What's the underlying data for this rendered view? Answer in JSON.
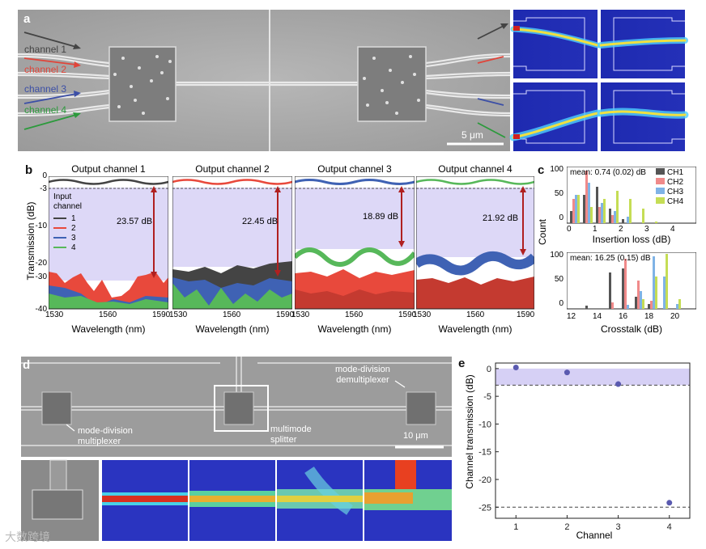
{
  "panel_a": {
    "label": "a",
    "channels": [
      {
        "name": "channel 1",
        "color": "#444444"
      },
      {
        "name": "channel 2",
        "color": "#e0453a"
      },
      {
        "name": "channel 3",
        "color": "#3c4fa6"
      },
      {
        "name": "channel 4",
        "color": "#2c9a3c"
      }
    ],
    "scalebar": "5 μm"
  },
  "panel_b": {
    "label": "b",
    "ylabel": "Transmission (dB)",
    "xlabel": "Wavelength (nm)",
    "legend_title": "Input channel",
    "yticks": [
      "0",
      "-3",
      "-10",
      "-20",
      "-30",
      "-40"
    ],
    "xticks": [
      "1530",
      "1560",
      "1590"
    ],
    "legend": [
      {
        "label": "1",
        "color": "#444444"
      },
      {
        "label": "2",
        "color": "#e8493c"
      },
      {
        "label": "3",
        "color": "#3f62b4"
      },
      {
        "label": "4",
        "color": "#57b85a"
      }
    ],
    "subplots": [
      {
        "title": "Output channel 1",
        "crosstalk": "23.57 dB"
      },
      {
        "title": "Output channel 2",
        "crosstalk": "22.45 dB"
      },
      {
        "title": "Output channel 3",
        "crosstalk": "18.89 dB"
      },
      {
        "title": "Output channel 4",
        "crosstalk": "21.92 dB"
      }
    ]
  },
  "panel_c": {
    "label": "c",
    "ylabel": "Count",
    "top": {
      "mean": "mean: 0.74 (0.02) dB",
      "xlabel": "Insertion loss (dB)",
      "xticks": [
        "0",
        "1",
        "2",
        "3",
        "4"
      ],
      "yticks": [
        "100",
        "50",
        "0"
      ]
    },
    "bottom": {
      "mean": "mean: 16.25 (0.15) dB",
      "xlabel": "Crosstalk (dB)",
      "xticks": [
        "12",
        "14",
        "16",
        "18",
        "20"
      ],
      "yticks": [
        "100",
        "50",
        "0"
      ]
    },
    "legend": [
      {
        "label": "CH1",
        "color": "#555555"
      },
      {
        "label": "CH2",
        "color": "#f08a8a"
      },
      {
        "label": "CH3",
        "color": "#7fb3e6"
      },
      {
        "label": "CH4",
        "color": "#c5dd55"
      }
    ]
  },
  "panel_d": {
    "label": "d",
    "mux": "mode-division\nmultiplexer",
    "mux_line1": "mode-division",
    "mux_line2": "multiplexer",
    "splitter_line1": "multimode",
    "splitter_line2": "splitter",
    "demux_line1": "mode-division",
    "demux_line2": "demultiplexer",
    "scalebar": "10 μm"
  },
  "panel_e": {
    "label": "e",
    "chart_data": {
      "type": "scatter",
      "x": [
        1,
        2,
        3,
        4
      ],
      "y": [
        0.2,
        -0.7,
        -2.8,
        -24.2
      ],
      "xlabel": "Channel",
      "ylabel": "Channel transmission (dB)",
      "ylim": [
        -27,
        1
      ],
      "xticks": [
        "1",
        "2",
        "3",
        "4"
      ],
      "yticks": [
        "0",
        "-5",
        "-10",
        "-15",
        "-20",
        "-25"
      ],
      "ref_lines": [
        -3,
        -25
      ],
      "marker_color": "#5a5ab0",
      "band_color": "#d6d0f5"
    }
  },
  "watermark": "大数跨境"
}
